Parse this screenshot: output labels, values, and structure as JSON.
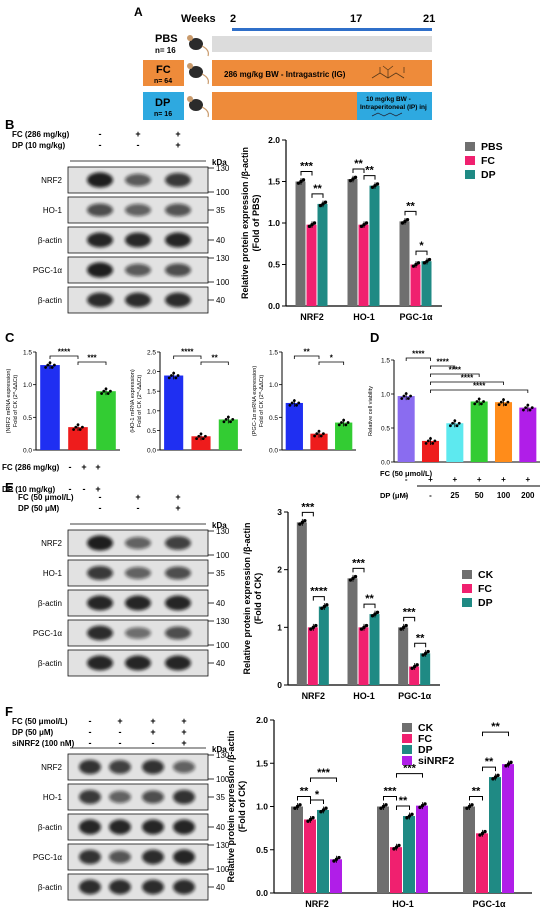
{
  "panels": {
    "A": {
      "label": "A",
      "weeks_label": "Weeks",
      "timepoints": [
        "2",
        "17",
        "21"
      ],
      "groups": [
        {
          "name": "PBS",
          "n": "n= 16"
        },
        {
          "name": "FC",
          "n": "n= 64"
        },
        {
          "name": "DP",
          "n": "n= 16"
        }
      ],
      "fc_treatment": "286 mg/kg BW - Intragastric (IG)",
      "dp_treatment_line1": "10 mg/kg BW -",
      "dp_treatment_line2": "Intraperitoneal (IP) inj",
      "colors": {
        "pbs": "#dcdcdc",
        "fc": "#ee8b3a",
        "dp": "#2ea9e0",
        "timeline": "#2f6fc9"
      }
    },
    "B": {
      "label": "B",
      "conditions": [
        {
          "label": "FC (286 mg/kg)",
          "marks": [
            "-",
            "+",
            "+"
          ]
        },
        {
          "label": "DP (10 mg/kg)",
          "marks": [
            "-",
            "-",
            "+"
          ]
        }
      ],
      "blots": [
        {
          "protein": "NRF2",
          "kda": [
            "130",
            "100"
          ]
        },
        {
          "protein": "HO-1",
          "kda": [
            "35"
          ]
        },
        {
          "protein": "β-actin",
          "kda": [
            "40"
          ]
        },
        {
          "protein": "PGC-1α",
          "kda": [
            "130",
            "100"
          ]
        },
        {
          "protein": "β-actin",
          "kda": [
            "40"
          ]
        }
      ]
    },
    "C": {
      "label": "C"
    },
    "D": {
      "label": "D"
    },
    "E": {
      "label": "E",
      "conditions": [
        {
          "label": "FC (50 μmol/L)",
          "marks": [
            "-",
            "+",
            "+"
          ]
        },
        {
          "label": "DP (50 μM)",
          "marks": [
            "-",
            "-",
            "+"
          ]
        }
      ],
      "blots": [
        {
          "protein": "NRF2",
          "kda": [
            "130",
            "100"
          ]
        },
        {
          "protein": "HO-1",
          "kda": [
            "35"
          ]
        },
        {
          "protein": "β-actin",
          "kda": [
            "40"
          ]
        },
        {
          "protein": "PGC-1α",
          "kda": [
            "130",
            "100"
          ]
        },
        {
          "protein": "β-actin",
          "kda": [
            "40"
          ]
        }
      ]
    },
    "F": {
      "label": "F",
      "conditions": [
        {
          "label": "FC (50 μmol/L)",
          "marks": [
            "-",
            "+",
            "+",
            "+"
          ]
        },
        {
          "label": "DP (50 μM)",
          "marks": [
            "-",
            "-",
            "+",
            "+"
          ]
        },
        {
          "label": "siNRF2 (100 nM)",
          "marks": [
            "-",
            "-",
            "-",
            "+"
          ]
        }
      ],
      "blots": [
        {
          "protein": "NRF2",
          "kda": [
            "130",
            "100"
          ]
        },
        {
          "protein": "HO-1",
          "kda": [
            "35"
          ]
        },
        {
          "protein": "β-actin",
          "kda": [
            "40"
          ]
        },
        {
          "protein": "PGC-1α",
          "kda": [
            "130",
            "100"
          ]
        },
        {
          "protein": "β-actin",
          "kda": [
            "40"
          ]
        }
      ]
    },
    "kda_label": "kDa"
  },
  "chart_data": [
    {
      "id": "B-bar",
      "type": "bar",
      "ylabel": "Relative protein expression /β-actin\n(Fold of PBS)",
      "ylim": [
        0,
        2.0
      ],
      "yticks": [
        "0.0",
        "0.5",
        "1.0",
        "1.5",
        "2.0"
      ],
      "categories": [
        "NRF2",
        "HO-1",
        "PGC-1α"
      ],
      "series": [
        {
          "name": "PBS",
          "color": "#6f6f6f",
          "values": [
            1.5,
            1.53,
            1.02
          ]
        },
        {
          "name": "FC",
          "color": "#f0206f",
          "values": [
            0.98,
            0.98,
            0.5
          ]
        },
        {
          "name": "DP",
          "color": "#1f8a84",
          "values": [
            1.23,
            1.45,
            0.54
          ]
        }
      ],
      "significance": [
        {
          "category": 0,
          "pair": [
            0,
            1
          ],
          "label": "***"
        },
        {
          "category": 0,
          "pair": [
            1,
            2
          ],
          "label": "**"
        },
        {
          "category": 1,
          "pair": [
            0,
            1
          ],
          "label": "**"
        },
        {
          "category": 1,
          "pair": [
            1,
            2
          ],
          "label": "**"
        },
        {
          "category": 2,
          "pair": [
            0,
            1
          ],
          "label": "**"
        },
        {
          "category": 2,
          "pair": [
            1,
            2
          ],
          "label": "*"
        }
      ],
      "legend": "top-right"
    },
    {
      "id": "C1",
      "type": "bar",
      "ylabel": "(NRF2 mRNA expression)\nFold of CK (2^-ΔΔCt)",
      "ylim": [
        0,
        1.5
      ],
      "yticks": [
        "0.0",
        "0.5",
        "1.0",
        "1.5"
      ],
      "categories": [
        "1",
        "2",
        "3"
      ],
      "values": [
        1.3,
        0.35,
        0.9
      ],
      "colors": [
        "#1f2ff2",
        "#ee1c1c",
        "#33cc33"
      ],
      "significance": [
        {
          "pair": [
            0,
            1
          ],
          "label": "****"
        },
        {
          "pair": [
            1,
            2
          ],
          "label": "***"
        }
      ]
    },
    {
      "id": "C2",
      "type": "bar",
      "ylabel": "(HO-1 mRNA expression)\nFold of CK (2^-ΔΔCt)",
      "ylim": [
        0,
        2.5
      ],
      "yticks": [
        "0.0",
        "0.5",
        "1.0",
        "1.5",
        "2.0",
        "2.5"
      ],
      "categories": [
        "1",
        "2",
        "3"
      ],
      "values": [
        1.9,
        0.35,
        0.78
      ],
      "colors": [
        "#1f2ff2",
        "#ee1c1c",
        "#33cc33"
      ],
      "significance": [
        {
          "pair": [
            0,
            1
          ],
          "label": "****"
        },
        {
          "pair": [
            1,
            2
          ],
          "label": "**"
        }
      ]
    },
    {
      "id": "C3",
      "type": "bar",
      "ylabel": "(PGC-1α mRNA expression)\nFold of CK (2^-ΔΔCt)",
      "ylim": [
        0,
        1.5
      ],
      "yticks": [
        "0.0",
        "0.5",
        "1.0",
        "1.5"
      ],
      "categories": [
        "1",
        "2",
        "3"
      ],
      "values": [
        0.72,
        0.25,
        0.42
      ],
      "colors": [
        "#1f2ff2",
        "#ee1c1c",
        "#33cc33"
      ],
      "significance": [
        {
          "pair": [
            0,
            1
          ],
          "label": "**"
        },
        {
          "pair": [
            1,
            2
          ],
          "label": "*"
        }
      ]
    },
    {
      "id": "C-conditions",
      "rows": [
        {
          "label": "FC (286 mg/kg)",
          "marks": [
            "-",
            "+",
            "+"
          ]
        },
        {
          "label": "DP (10 mg/kg)",
          "marks": [
            "-",
            "-",
            "+"
          ]
        }
      ]
    },
    {
      "id": "D",
      "type": "bar",
      "ylabel": "Relative cell viability",
      "ylim": [
        0,
        1.5
      ],
      "yticks": [
        "0.0",
        "0.5",
        "1.0",
        "1.5"
      ],
      "categories": [
        "1",
        "2",
        "3",
        "4",
        "5",
        "6"
      ],
      "values": [
        0.97,
        0.31,
        0.57,
        0.89,
        0.88,
        0.8
      ],
      "colors": [
        "#8a6cf0",
        "#ee1c1c",
        "#5de9ef",
        "#33cc33",
        "#ff8c1a",
        "#b01ee8"
      ],
      "rows": [
        {
          "label": "FC (50 μmol/L)",
          "marks": [
            "-",
            "+",
            "+",
            "+",
            "+",
            "+"
          ]
        },
        {
          "label": "DP (μM)",
          "marks": [
            "-",
            "-",
            "25",
            "50",
            "100",
            "200"
          ]
        }
      ],
      "significance": [
        {
          "pair": [
            0,
            1
          ],
          "label": "****"
        },
        {
          "pair": [
            1,
            2
          ],
          "label": "****"
        },
        {
          "pair": [
            1,
            3
          ],
          "label": "****"
        },
        {
          "pair": [
            1,
            4
          ],
          "label": "****"
        },
        {
          "pair": [
            1,
            5
          ],
          "label": "****"
        }
      ]
    },
    {
      "id": "E-bar",
      "type": "bar",
      "ylabel": "Relative protein expression /β-actin\n(Fold of CK)",
      "ylim": [
        0,
        3
      ],
      "yticks": [
        "0",
        "1",
        "2",
        "3"
      ],
      "categories": [
        "NRF2",
        "HO-1",
        "PGC-1α"
      ],
      "series": [
        {
          "name": "CK",
          "color": "#6f6f6f",
          "values": [
            2.82,
            1.85,
            1.0
          ]
        },
        {
          "name": "FC",
          "color": "#f0206f",
          "values": [
            1.0,
            1.0,
            0.32
          ]
        },
        {
          "name": "DP",
          "color": "#1f8a84",
          "values": [
            1.36,
            1.23,
            0.55
          ]
        }
      ],
      "significance": [
        {
          "category": 0,
          "pair": [
            0,
            1
          ],
          "label": "***"
        },
        {
          "category": 0,
          "pair": [
            1,
            2
          ],
          "label": "****"
        },
        {
          "category": 1,
          "pair": [
            0,
            1
          ],
          "label": "***"
        },
        {
          "category": 1,
          "pair": [
            1,
            2
          ],
          "label": "**"
        },
        {
          "category": 2,
          "pair": [
            0,
            1
          ],
          "label": "***"
        },
        {
          "category": 2,
          "pair": [
            1,
            2
          ],
          "label": "**"
        }
      ],
      "legend": "right"
    },
    {
      "id": "F-bar",
      "type": "bar",
      "ylabel": "Relative protein expression /β-actin\n(Fold of CK)",
      "ylim": [
        0,
        2.0
      ],
      "yticks": [
        "0.0",
        "0.5",
        "1.0",
        "1.5",
        "2.0"
      ],
      "categories": [
        "NRF2",
        "HO-1",
        "PGC-1α"
      ],
      "series": [
        {
          "name": "CK",
          "color": "#6f6f6f",
          "values": [
            1.0,
            1.0,
            1.0
          ]
        },
        {
          "name": "FC",
          "color": "#f0206f",
          "values": [
            0.85,
            0.53,
            0.69
          ]
        },
        {
          "name": "DP",
          "color": "#1f8a84",
          "values": [
            0.96,
            0.89,
            1.34
          ]
        },
        {
          "name": "siNRF2",
          "color": "#b01ee8",
          "values": [
            0.39,
            1.01,
            1.49
          ]
        }
      ],
      "significance": [
        {
          "category": 0,
          "pair": [
            0,
            1
          ],
          "label": "**"
        },
        {
          "category": 0,
          "pair": [
            1,
            2
          ],
          "label": "*"
        },
        {
          "category": 0,
          "pair": [
            1,
            3
          ],
          "label": "***"
        },
        {
          "category": 1,
          "pair": [
            0,
            1
          ],
          "label": "***"
        },
        {
          "category": 1,
          "pair": [
            1,
            2
          ],
          "label": "**"
        },
        {
          "category": 1,
          "pair": [
            1,
            3
          ],
          "label": "***"
        },
        {
          "category": 2,
          "pair": [
            0,
            1
          ],
          "label": "**"
        },
        {
          "category": 2,
          "pair": [
            1,
            2
          ],
          "label": "**"
        },
        {
          "category": 2,
          "pair": [
            1,
            3
          ],
          "label": "**"
        }
      ],
      "legend": "top"
    }
  ]
}
